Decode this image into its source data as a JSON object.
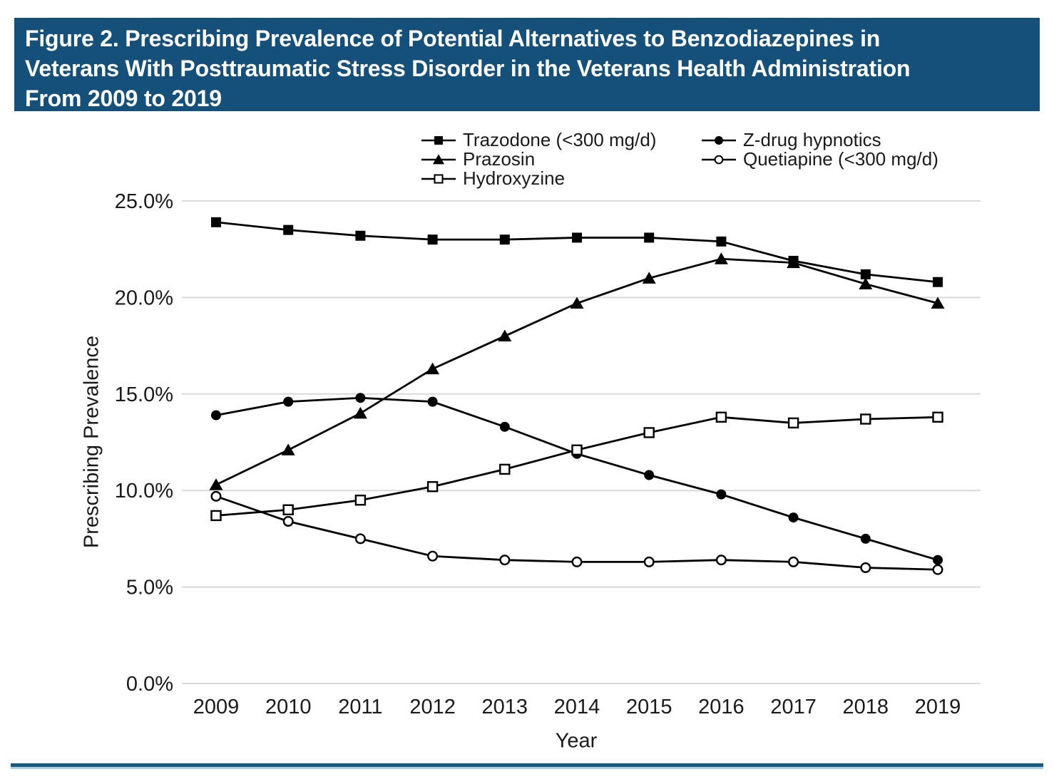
{
  "figure": {
    "title_lines": [
      "Figure 2. Prescribing Prevalence of Potential Alternatives to Benzodiazepines in",
      "Veterans With Posttraumatic Stress Disorder in the Veterans Health Administration",
      "From 2009 to 2019"
    ]
  },
  "colors": {
    "banner_bg": "#15507a",
    "banner_text": "#ffffff",
    "series": "#000000",
    "gridline": "#d9d9d9",
    "axis_text": "#1a1a1a",
    "divider_dark": "#1b5a7e",
    "divider_light": "#aacfe2"
  },
  "chart_data": {
    "type": "line",
    "x": [
      2009,
      2010,
      2011,
      2012,
      2013,
      2014,
      2015,
      2016,
      2017,
      2018,
      2019
    ],
    "xlabel": "Year",
    "ylabel": "Prescribing Prevalence",
    "ylim": [
      0,
      25
    ],
    "ytick_values": [
      0,
      5,
      10,
      15,
      20,
      25
    ],
    "ytick_labels": [
      "0.0%",
      "5.0%",
      "10.0%",
      "15.0%",
      "20.0%",
      "25.0%"
    ],
    "grid": "horizontal",
    "legend_position": "top",
    "series": [
      {
        "name": "Trazodone (<300 mg/d)",
        "marker": "filled-square",
        "legend_column": 1,
        "values": [
          23.9,
          23.5,
          23.2,
          23.0,
          23.0,
          23.1,
          23.1,
          22.9,
          21.9,
          21.2,
          20.8
        ]
      },
      {
        "name": "Prazosin",
        "marker": "filled-triangle",
        "legend_column": 1,
        "values": [
          10.3,
          12.1,
          14.0,
          16.3,
          18.0,
          19.7,
          21.0,
          22.0,
          21.8,
          20.7,
          19.7
        ]
      },
      {
        "name": "Hydroxyzine",
        "marker": "open-square",
        "legend_column": 1,
        "values": [
          8.7,
          9.0,
          9.5,
          10.2,
          11.1,
          12.1,
          13.0,
          13.8,
          13.5,
          13.7,
          13.8
        ]
      },
      {
        "name": "Z-drug hypnotics",
        "marker": "filled-circle",
        "legend_column": 2,
        "values": [
          13.9,
          14.6,
          14.8,
          14.6,
          13.3,
          11.9,
          10.8,
          9.8,
          8.6,
          7.5,
          6.4
        ]
      },
      {
        "name": "Quetiapine (<300 mg/d)",
        "marker": "open-circle",
        "legend_column": 2,
        "values": [
          9.7,
          8.4,
          7.5,
          6.6,
          6.4,
          6.3,
          6.3,
          6.4,
          6.3,
          6.0,
          5.9
        ]
      }
    ]
  }
}
